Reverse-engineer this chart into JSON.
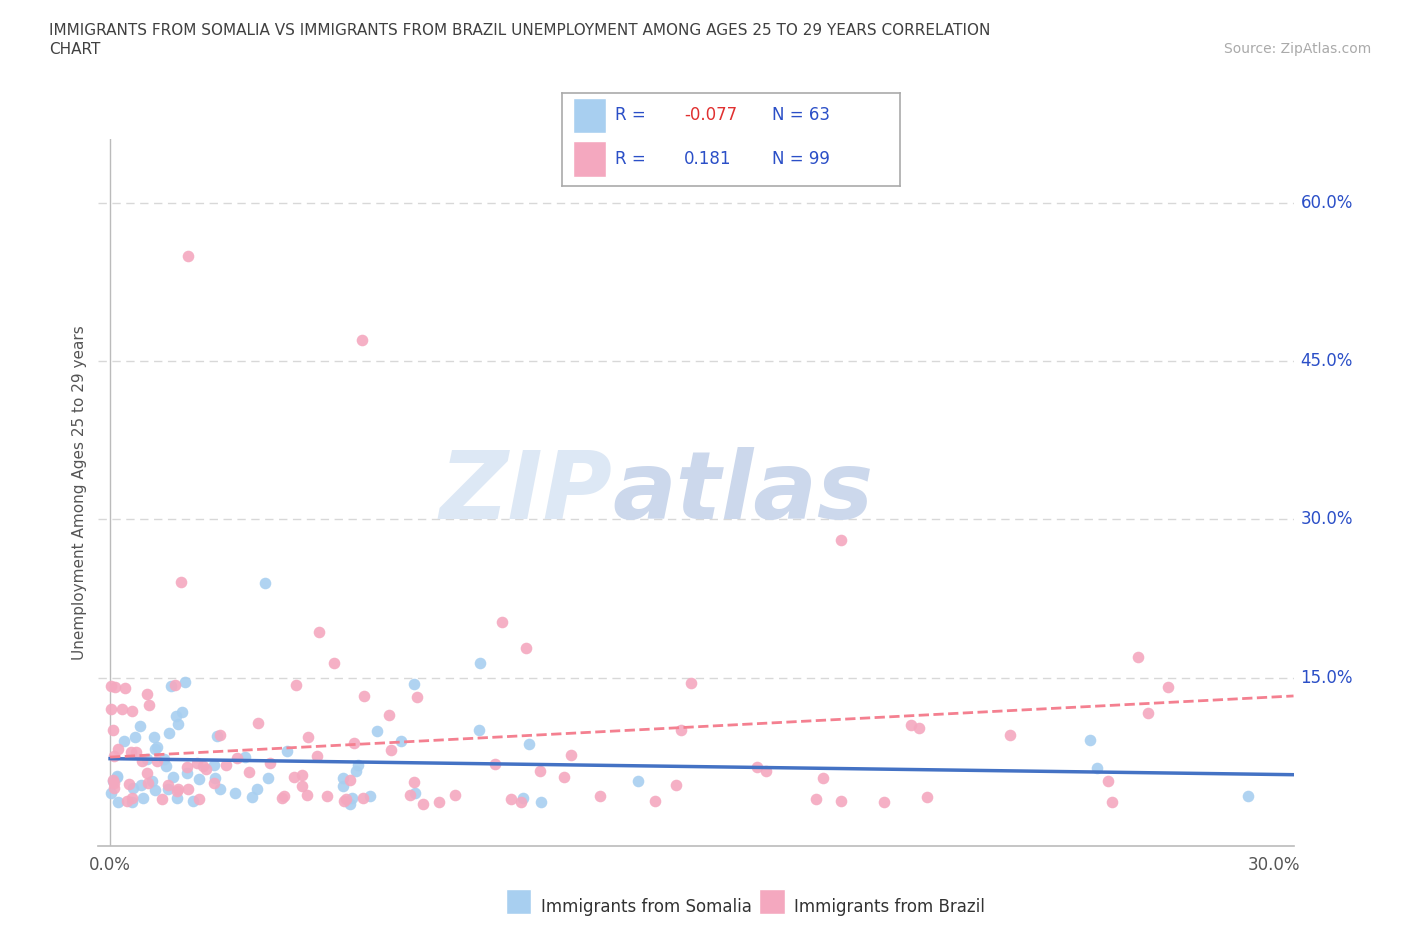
{
  "title_line1": "IMMIGRANTS FROM SOMALIA VS IMMIGRANTS FROM BRAZIL UNEMPLOYMENT AMONG AGES 25 TO 29 YEARS CORRELATION",
  "title_line2": "CHART",
  "source": "Source: ZipAtlas.com",
  "ylabel": "Unemployment Among Ages 25 to 29 years",
  "xlim": [
    -0.003,
    0.305
  ],
  "ylim": [
    -0.01,
    0.66
  ],
  "ytick_right_labels": [
    "15.0%",
    "30.0%",
    "45.0%",
    "60.0%"
  ],
  "ytick_right_values": [
    0.15,
    0.3,
    0.45,
    0.6
  ],
  "grid_values": [
    0.15,
    0.3,
    0.45,
    0.6
  ],
  "somalia_color": "#a8cff0",
  "brazil_color": "#f4a8bf",
  "somalia_line_color": "#4472c4",
  "brazil_line_color": "#f48090",
  "legend_text_color": "#2b4fc7",
  "somalia_R": -0.077,
  "somalia_N": 63,
  "brazil_R": 0.181,
  "brazil_N": 99,
  "background_color": "#ffffff",
  "grid_color": "#d8d8d8",
  "title_color": "#404040",
  "source_color": "#aaaaaa",
  "axis_color": "#bbbbbb",
  "marker_size": 70
}
